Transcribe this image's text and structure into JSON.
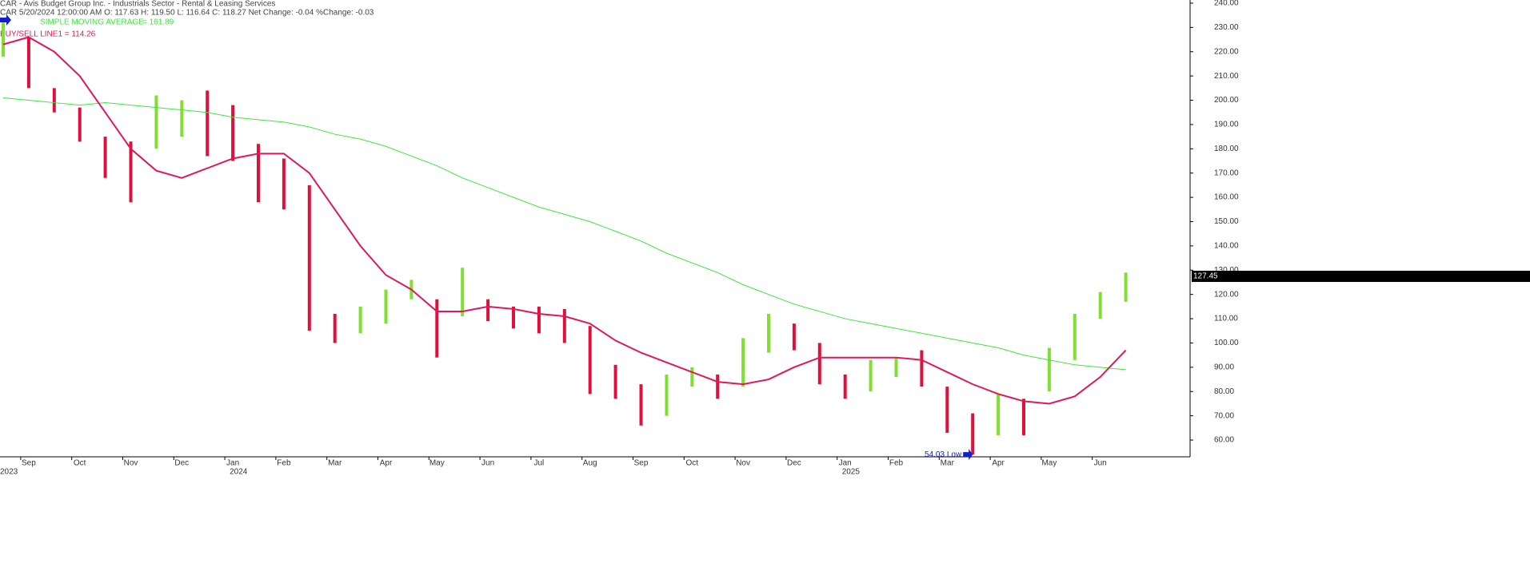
{
  "header": {
    "title": "CAR - Avis Budget Group Inc. - Industrials Sector - Rental & Leasing Services",
    "quote": "CAR 5/20/2024 12:00:00 AM O: 117.63 H: 119.50 L: 116.64 C: 118.27 Net Change: -0.04  %Change: -0.03"
  },
  "chart_data": {
    "type": "ohlc-range",
    "categories": [
      null,
      "Sep",
      null,
      "Oct",
      null,
      "Nov",
      null,
      "Dec",
      null,
      "Jan",
      null,
      "Feb",
      null,
      "Mar",
      null,
      "Apr",
      null,
      "May",
      null,
      "Jun",
      null,
      "Jul",
      null,
      "Aug",
      null,
      "Sep",
      null,
      "Oct",
      null,
      "Nov",
      null,
      "Dec",
      null,
      "Jan",
      null,
      "Feb",
      null,
      "Mar",
      null,
      "Apr",
      null,
      "May",
      null,
      "Jun",
      null
    ],
    "year_labels": [
      "2023",
      null,
      null,
      null,
      null,
      null,
      null,
      null,
      null,
      "2024",
      null,
      null,
      null,
      null,
      null,
      null,
      null,
      null,
      null,
      null,
      null,
      null,
      null,
      null,
      null,
      null,
      null,
      null,
      null,
      null,
      null,
      null,
      null,
      "2025",
      null,
      null,
      null,
      null,
      null,
      null,
      null,
      null,
      null,
      null,
      null
    ],
    "price": {
      "up_color": "#7fe030",
      "down_color": "#e0103c",
      "high": [
        232,
        226,
        205,
        197,
        185,
        183,
        202,
        200,
        204,
        198,
        182,
        176,
        165,
        112,
        115,
        122,
        126,
        118,
        131,
        118,
        115,
        115,
        114,
        107,
        91,
        83,
        87,
        90,
        87,
        102,
        112,
        108,
        100,
        87,
        93,
        94,
        97,
        82,
        71,
        79,
        77,
        98,
        112,
        121,
        129
      ],
      "low": [
        218,
        205,
        195,
        183,
        168,
        158,
        180,
        185,
        177,
        175,
        158,
        155,
        105,
        100,
        104,
        108,
        118,
        94,
        111,
        109,
        106,
        104,
        100,
        79,
        77,
        66,
        70,
        82,
        77,
        82,
        96,
        97,
        83,
        77,
        80,
        86,
        82,
        63,
        54,
        62,
        62,
        80,
        93,
        110,
        117
      ]
    },
    "lines": [
      {
        "name": "SIMPLE MOVING AVERAGE",
        "value_label": "= 161.89",
        "color": "#3ee63e",
        "values": [
          201,
          200,
          199,
          198,
          199,
          198,
          197,
          196,
          195,
          193,
          192,
          191,
          189,
          186,
          184,
          181,
          177,
          173,
          168,
          164,
          160,
          156,
          153,
          150,
          146,
          142,
          137,
          133,
          129,
          124,
          120,
          116,
          113,
          110,
          108,
          106,
          104,
          102,
          100,
          98,
          95,
          93,
          91,
          90,
          89
        ]
      },
      {
        "name": "BUY/SELL LINE1 = 114.26",
        "color": "#e0185a",
        "values": [
          223,
          226,
          220,
          210,
          195,
          180,
          171,
          168,
          172,
          176,
          178,
          178,
          170,
          155,
          140,
          128,
          122,
          113,
          113,
          115,
          114,
          112,
          111,
          108,
          101,
          96,
          92,
          88,
          84,
          83,
          85,
          90,
          94,
          94,
          94,
          94,
          93,
          88,
          83,
          79,
          76,
          75,
          78,
          86,
          97
        ]
      }
    ],
    "ylim": [
      53.1,
      241.3
    ],
    "yticks": [
      {
        "value": 60,
        "label": "60.00"
      },
      {
        "value": 70,
        "label": "70.00"
      },
      {
        "value": 80,
        "label": "80.00"
      },
      {
        "value": 90,
        "label": "90.00"
      },
      {
        "value": 100,
        "label": "100.00"
      },
      {
        "value": 110,
        "label": "110.00"
      },
      {
        "value": 120,
        "label": "120.00"
      },
      {
        "value": 130,
        "label": "130.00"
      },
      {
        "value": 140,
        "label": "140.00"
      },
      {
        "value": 150,
        "label": "150.00"
      },
      {
        "value": 160,
        "label": "160.00"
      },
      {
        "value": 170,
        "label": "170.00"
      },
      {
        "value": 180,
        "label": "180.00"
      },
      {
        "value": 190,
        "label": "190.00"
      },
      {
        "value": 200,
        "label": "200.00"
      },
      {
        "value": 210,
        "label": "210.00"
      },
      {
        "value": 220,
        "label": "220.00"
      },
      {
        "value": 230,
        "label": "230.00"
      },
      {
        "value": 240,
        "label": "240.00"
      }
    ],
    "last_price": {
      "value": 127.45,
      "label": "127.45"
    },
    "low_marker": {
      "value": 54.03,
      "label": "54.03 Low",
      "index": 38
    }
  }
}
